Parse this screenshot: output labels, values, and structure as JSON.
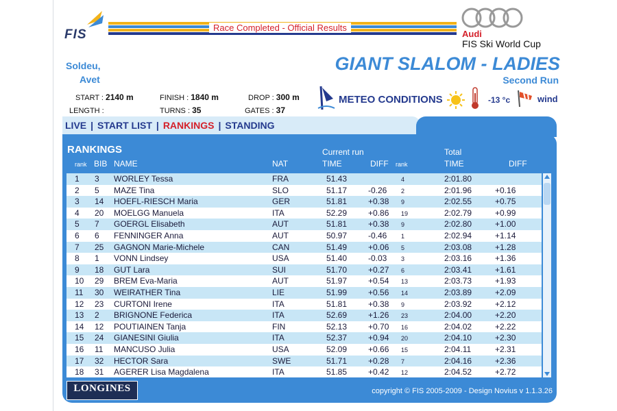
{
  "header": {
    "status": "Race Completed - Official Results",
    "fis_logo": "FIS",
    "sponsor_brand": "Audi",
    "sponsor_cup": "FIS Ski World Cup"
  },
  "venue": {
    "line1": "Soldeu,",
    "line2": "Avet"
  },
  "race": {
    "title": "GIANT SLALOM - LADIES",
    "subtitle": "Second Run"
  },
  "course": {
    "start_label": "START :",
    "start_value": "2140 m",
    "finish_label": "FINISH :",
    "finish_value": "1840 m",
    "drop_label": "DROP :",
    "drop_value": "300 m",
    "length_label": "LENGTH :",
    "length_value": "",
    "turns_label": "TURNS :",
    "turns_value": "35",
    "gates_label": "GATES :",
    "gates_value": "37"
  },
  "meteo": {
    "label": "METEO CONDITIONS",
    "icons": [
      "flag-icon",
      "sun-icon",
      "thermometer-icon",
      "windsock-icon"
    ],
    "temperature": "-13 °c",
    "wind": "wind"
  },
  "nav": {
    "items": [
      "LIVE",
      "START LIST",
      "RANKINGS",
      "STANDING"
    ],
    "separator": "|",
    "active": "RANKINGS"
  },
  "table": {
    "title": "RANKINGS",
    "group_current": "Current run",
    "group_total": "Total",
    "headers": {
      "rank": "rank",
      "bib": "BIB",
      "name": "NAME",
      "nat": "NAT",
      "time": "TIME",
      "diff": "DIFF",
      "run_rank": "rank",
      "total_time": "TIME",
      "total_diff": "DIFF"
    },
    "rows": [
      {
        "rank": "1",
        "bib": "3",
        "name": "WORLEY Tessa",
        "nat": "FRA",
        "time": "51.43",
        "diff": "",
        "run_rank": "4",
        "total": "2:01.80",
        "total_diff": ""
      },
      {
        "rank": "2",
        "bib": "5",
        "name": "MAZE Tina",
        "nat": "SLO",
        "time": "51.17",
        "diff": "-0.26",
        "run_rank": "2",
        "total": "2:01.96",
        "total_diff": "+0.16"
      },
      {
        "rank": "3",
        "bib": "14",
        "name": "HOEFL-RIESCH Maria",
        "nat": "GER",
        "time": "51.81",
        "diff": "+0.38",
        "run_rank": "9",
        "total": "2:02.55",
        "total_diff": "+0.75"
      },
      {
        "rank": "4",
        "bib": "20",
        "name": "MOELGG Manuela",
        "nat": "ITA",
        "time": "52.29",
        "diff": "+0.86",
        "run_rank": "19",
        "total": "2:02.79",
        "total_diff": "+0.99"
      },
      {
        "rank": "5",
        "bib": "7",
        "name": "GOERGL Elisabeth",
        "nat": "AUT",
        "time": "51.81",
        "diff": "+0.38",
        "run_rank": "9",
        "total": "2:02.80",
        "total_diff": "+1.00"
      },
      {
        "rank": "6",
        "bib": "6",
        "name": "FENNINGER Anna",
        "nat": "AUT",
        "time": "50.97",
        "diff": "-0.46",
        "run_rank": "1",
        "total": "2:02.94",
        "total_diff": "+1.14"
      },
      {
        "rank": "7",
        "bib": "25",
        "name": "GAGNON Marie-Michele",
        "nat": "CAN",
        "time": "51.49",
        "diff": "+0.06",
        "run_rank": "5",
        "total": "2:03.08",
        "total_diff": "+1.28"
      },
      {
        "rank": "8",
        "bib": "1",
        "name": "VONN Lindsey",
        "nat": "USA",
        "time": "51.40",
        "diff": "-0.03",
        "run_rank": "3",
        "total": "2:03.16",
        "total_diff": "+1.36"
      },
      {
        "rank": "9",
        "bib": "18",
        "name": "GUT Lara",
        "nat": "SUI",
        "time": "51.70",
        "diff": "+0.27",
        "run_rank": "6",
        "total": "2:03.41",
        "total_diff": "+1.61"
      },
      {
        "rank": "10",
        "bib": "29",
        "name": "BREM Eva-Maria",
        "nat": "AUT",
        "time": "51.97",
        "diff": "+0.54",
        "run_rank": "13",
        "total": "2:03.73",
        "total_diff": "+1.93"
      },
      {
        "rank": "11",
        "bib": "30",
        "name": "WEIRATHER Tina",
        "nat": "LIE",
        "time": "51.99",
        "diff": "+0.56",
        "run_rank": "14",
        "total": "2:03.89",
        "total_diff": "+2.09"
      },
      {
        "rank": "12",
        "bib": "23",
        "name": "CURTONI Irene",
        "nat": "ITA",
        "time": "51.81",
        "diff": "+0.38",
        "run_rank": "9",
        "total": "2:03.92",
        "total_diff": "+2.12"
      },
      {
        "rank": "13",
        "bib": "2",
        "name": "BRIGNONE Federica",
        "nat": "ITA",
        "time": "52.69",
        "diff": "+1.26",
        "run_rank": "23",
        "total": "2:04.00",
        "total_diff": "+2.20"
      },
      {
        "rank": "14",
        "bib": "12",
        "name": "POUTIAINEN Tanja",
        "nat": "FIN",
        "time": "52.13",
        "diff": "+0.70",
        "run_rank": "16",
        "total": "2:04.02",
        "total_diff": "+2.22"
      },
      {
        "rank": "15",
        "bib": "24",
        "name": "GIANESINI Giulia",
        "nat": "ITA",
        "time": "52.37",
        "diff": "+0.94",
        "run_rank": "20",
        "total": "2:04.10",
        "total_diff": "+2.30"
      },
      {
        "rank": "16",
        "bib": "11",
        "name": "MANCUSO Julia",
        "nat": "USA",
        "time": "52.09",
        "diff": "+0.66",
        "run_rank": "15",
        "total": "2:04.11",
        "total_diff": "+2.31"
      },
      {
        "rank": "17",
        "bib": "32",
        "name": "HECTOR Sara",
        "nat": "SWE",
        "time": "51.71",
        "diff": "+0.28",
        "run_rank": "7",
        "total": "2:04.16",
        "total_diff": "+2.36"
      },
      {
        "rank": "18",
        "bib": "31",
        "name": "AGERER Lisa Magdalena",
        "nat": "ITA",
        "time": "51.85",
        "diff": "+0.42",
        "run_rank": "12",
        "total": "2:04.52",
        "total_diff": "+2.72"
      }
    ]
  },
  "footer": {
    "logo": "LONGINES",
    "copyright": "copyright © FIS 2005-2009 - Design Novius  v 1.1.3.26"
  },
  "colors": {
    "brand_blue": "#3c8ad6",
    "navy": "#243a8e",
    "red": "#d4202a",
    "row_alt": "#c8e6f6"
  }
}
